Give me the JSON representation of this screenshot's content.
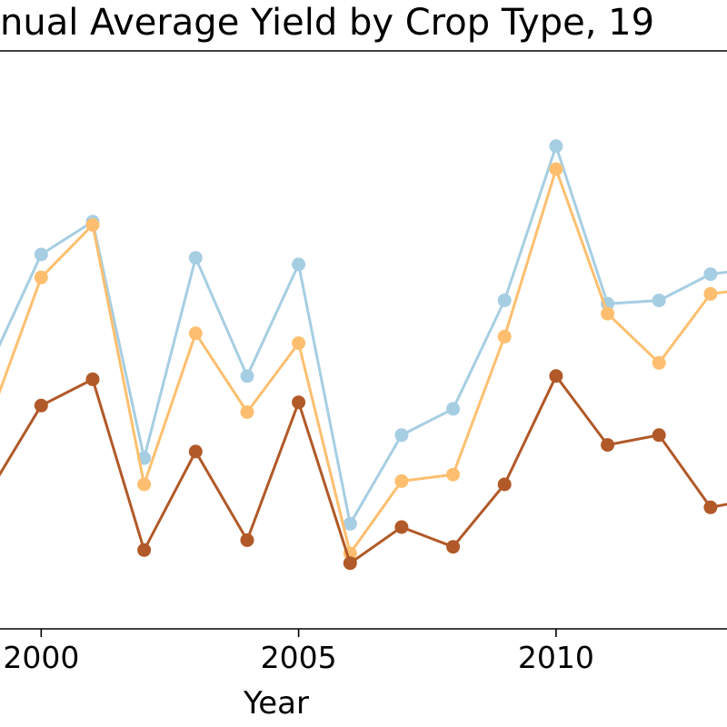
{
  "chart_data": {
    "type": "line",
    "title": "nual Average Yield by Crop Type, 19",
    "xlabel": "Year",
    "ylabel": "",
    "x_ticks": [
      2000,
      2005,
      2010
    ],
    "xlim": [
      1999.2,
      2013.32
    ],
    "ylim": [
      1.6,
      10.4
    ],
    "grid": false,
    "x": [
      1999,
      2000,
      2001,
      2002,
      2003,
      2004,
      2005,
      2006,
      2007,
      2008,
      2009,
      2010,
      2011,
      2012,
      2013,
      2014
    ],
    "series": [
      {
        "color": "#a6cee3",
        "values": [
          5.6,
          7.3,
          7.8,
          4.2,
          7.25,
          5.45,
          7.15,
          3.2,
          4.55,
          4.95,
          6.6,
          8.95,
          6.55,
          6.6,
          7.0,
          7.1
        ]
      },
      {
        "color": "#fdbf6f",
        "values": [
          4.8,
          6.95,
          7.75,
          3.8,
          6.1,
          4.9,
          5.95,
          2.75,
          3.85,
          3.95,
          6.05,
          8.6,
          6.4,
          5.65,
          6.7,
          6.8
        ]
      },
      {
        "color": "#b15928",
        "values": [
          3.7,
          5.0,
          5.4,
          2.8,
          4.3,
          2.95,
          5.05,
          2.6,
          3.15,
          2.85,
          3.8,
          5.45,
          4.4,
          4.55,
          3.45,
          3.6
        ]
      }
    ]
  }
}
